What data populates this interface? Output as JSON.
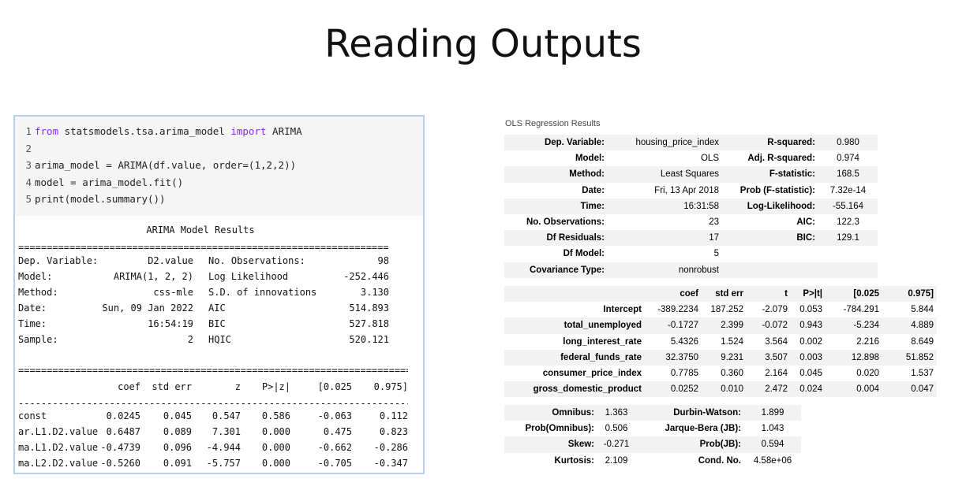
{
  "slide": {
    "title": "Reading Outputs"
  },
  "code": {
    "lines": [
      {
        "num": "1",
        "parts": [
          [
            "kw",
            "from"
          ],
          [
            "t",
            " statsmodels.tsa.arima_model "
          ],
          [
            "kw",
            "import"
          ],
          [
            "t",
            " ARIMA"
          ]
        ]
      },
      {
        "num": "2",
        "parts": []
      },
      {
        "num": "3",
        "parts": [
          [
            "t",
            "arima_model = ARIMA(df.value, order=(1,2,2))"
          ]
        ]
      },
      {
        "num": "4",
        "parts": [
          [
            "t",
            "model = arima_model.fit()"
          ]
        ]
      },
      {
        "num": "5",
        "parts": [
          [
            "t",
            "print(model.summary())"
          ]
        ]
      }
    ]
  },
  "arima": {
    "title": "ARIMA Model Results",
    "summary": [
      {
        "l1": "Dep. Variable:",
        "v1": "D2.value",
        "l2": "No. Observations:",
        "v2": "98"
      },
      {
        "l1": "Model:",
        "v1": "ARIMA(1, 2, 2)",
        "l2": "Log Likelihood",
        "v2": "-252.446"
      },
      {
        "l1": "Method:",
        "v1": "css-mle",
        "l2": "S.D. of innovations",
        "v2": "3.130"
      },
      {
        "l1": "Date:",
        "v1": "Sun, 09 Jan 2022",
        "l2": "AIC",
        "v2": "514.893"
      },
      {
        "l1": "Time:",
        "v1": "16:54:19",
        "l2": "BIC",
        "v2": "527.818"
      },
      {
        "l1": "Sample:",
        "v1": "2",
        "l2": "HQIC",
        "v2": "520.121"
      }
    ],
    "coef_headers": [
      "coef",
      "std err",
      "z",
      "P>|z|",
      "[0.025",
      "0.975]"
    ],
    "coef_rows": [
      {
        "name": "const",
        "vals": [
          "0.0245",
          "0.045",
          "0.547",
          "0.586",
          "-0.063",
          "0.112"
        ]
      },
      {
        "name": "ar.L1.D2.value",
        "vals": [
          "0.6487",
          "0.089",
          "7.301",
          "0.000",
          "0.475",
          "0.823"
        ]
      },
      {
        "name": "ma.L1.D2.value",
        "vals": [
          "-0.4739",
          "0.096",
          "-4.944",
          "0.000",
          "-0.662",
          "-0.286"
        ]
      },
      {
        "name": "ma.L2.D2.value",
        "vals": [
          "-0.5260",
          "0.091",
          "-5.757",
          "0.000",
          "-0.705",
          "-0.347"
        ]
      }
    ]
  },
  "ols": {
    "caption": "OLS Regression Results",
    "summary": [
      {
        "l1": "Dep. Variable:",
        "v1": "housing_price_index",
        "l2": "R-squared:",
        "v2": "0.980"
      },
      {
        "l1": "Model:",
        "v1": "OLS",
        "l2": "Adj. R-squared:",
        "v2": "0.974"
      },
      {
        "l1": "Method:",
        "v1": "Least Squares",
        "l2": "F-statistic:",
        "v2": "168.5"
      },
      {
        "l1": "Date:",
        "v1": "Fri, 13 Apr 2018",
        "l2": "Prob (F-statistic):",
        "v2": "7.32e-14"
      },
      {
        "l1": "Time:",
        "v1": "16:31:58",
        "l2": "Log-Likelihood:",
        "v2": "-55.164"
      },
      {
        "l1": "No. Observations:",
        "v1": "23",
        "l2": "AIC:",
        "v2": "122.3"
      },
      {
        "l1": "Df Residuals:",
        "v1": "17",
        "l2": "BIC:",
        "v2": "129.1"
      },
      {
        "l1": "Df Model:",
        "v1": "5",
        "l2": "",
        "v2": ""
      },
      {
        "l1": "Covariance Type:",
        "v1": "nonrobust",
        "l2": "",
        "v2": ""
      }
    ],
    "coef_headers": [
      "coef",
      "std err",
      "t",
      "P>|t|",
      "[0.025",
      "0.975]"
    ],
    "coef_rows": [
      {
        "name": "Intercept",
        "vals": [
          "-389.2234",
          "187.252",
          "-2.079",
          "0.053",
          "-784.291",
          "5.844"
        ]
      },
      {
        "name": "total_unemployed",
        "vals": [
          "-0.1727",
          "2.399",
          "-0.072",
          "0.943",
          "-5.234",
          "4.889"
        ]
      },
      {
        "name": "long_interest_rate",
        "vals": [
          "5.4326",
          "1.524",
          "3.564",
          "0.002",
          "2.216",
          "8.649"
        ]
      },
      {
        "name": "federal_funds_rate",
        "vals": [
          "32.3750",
          "9.231",
          "3.507",
          "0.003",
          "12.898",
          "51.852"
        ]
      },
      {
        "name": "consumer_price_index",
        "vals": [
          "0.7785",
          "0.360",
          "2.164",
          "0.045",
          "0.020",
          "1.537"
        ]
      },
      {
        "name": "gross_domestic_product",
        "vals": [
          "0.0252",
          "0.010",
          "2.472",
          "0.024",
          "0.004",
          "0.047"
        ]
      }
    ],
    "diagnostics": [
      {
        "l1": "Omnibus:",
        "v1": "1.363",
        "l2": "Durbin-Watson:",
        "v2": "1.899"
      },
      {
        "l1": "Prob(Omnibus):",
        "v1": "0.506",
        "l2": "Jarque-Bera (JB):",
        "v2": "1.043"
      },
      {
        "l1": "Skew:",
        "v1": "-0.271",
        "l2": "Prob(JB):",
        "v2": "0.594"
      },
      {
        "l1": "Kurtosis:",
        "v1": "2.109",
        "l2": "Cond. No.",
        "v2": "4.58e+06"
      }
    ]
  }
}
